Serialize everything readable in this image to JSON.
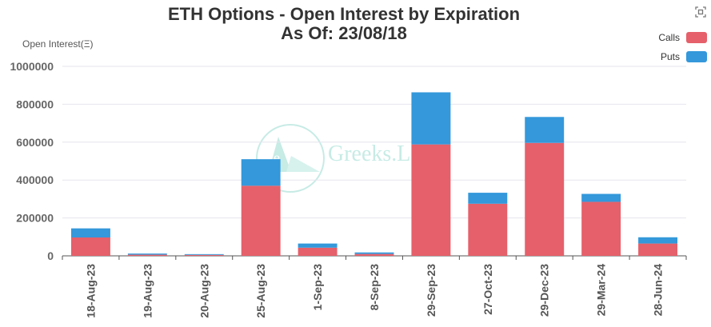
{
  "header": {
    "title_line1": "ETH Options - Open Interest by Expiration",
    "title_line2": "As Of: 23/08/18",
    "expand_icon": "expand-icon"
  },
  "watermark": {
    "text": "Greeks.L",
    "icon": "greeks-logo-icon"
  },
  "chart_data": {
    "type": "bar",
    "stacked": true,
    "ylabel": "Open Interest(Ξ)",
    "ylim": [
      0,
      1000000
    ],
    "yticks": [
      "0",
      "200000",
      "400000",
      "600000",
      "800000",
      "1000000"
    ],
    "ytick_values": [
      0,
      200000,
      400000,
      600000,
      800000,
      1000000
    ],
    "grid": true,
    "legend_position": "top-right",
    "categories": [
      "18-Aug-23",
      "19-Aug-23",
      "20-Aug-23",
      "25-Aug-23",
      "1-Sep-23",
      "8-Sep-23",
      "29-Sep-23",
      "27-Oct-23",
      "29-Dec-23",
      "29-Mar-24",
      "28-Jun-24"
    ],
    "series": [
      {
        "name": "Calls",
        "color": "#e5606a",
        "values": [
          97000,
          6000,
          5000,
          370000,
          43000,
          10000,
          588000,
          275000,
          596000,
          285000,
          65000
        ]
      },
      {
        "name": "Puts",
        "color": "#3498db",
        "values": [
          48000,
          6000,
          4000,
          140000,
          22000,
          8000,
          275000,
          58000,
          137000,
          42000,
          33000
        ]
      }
    ]
  }
}
